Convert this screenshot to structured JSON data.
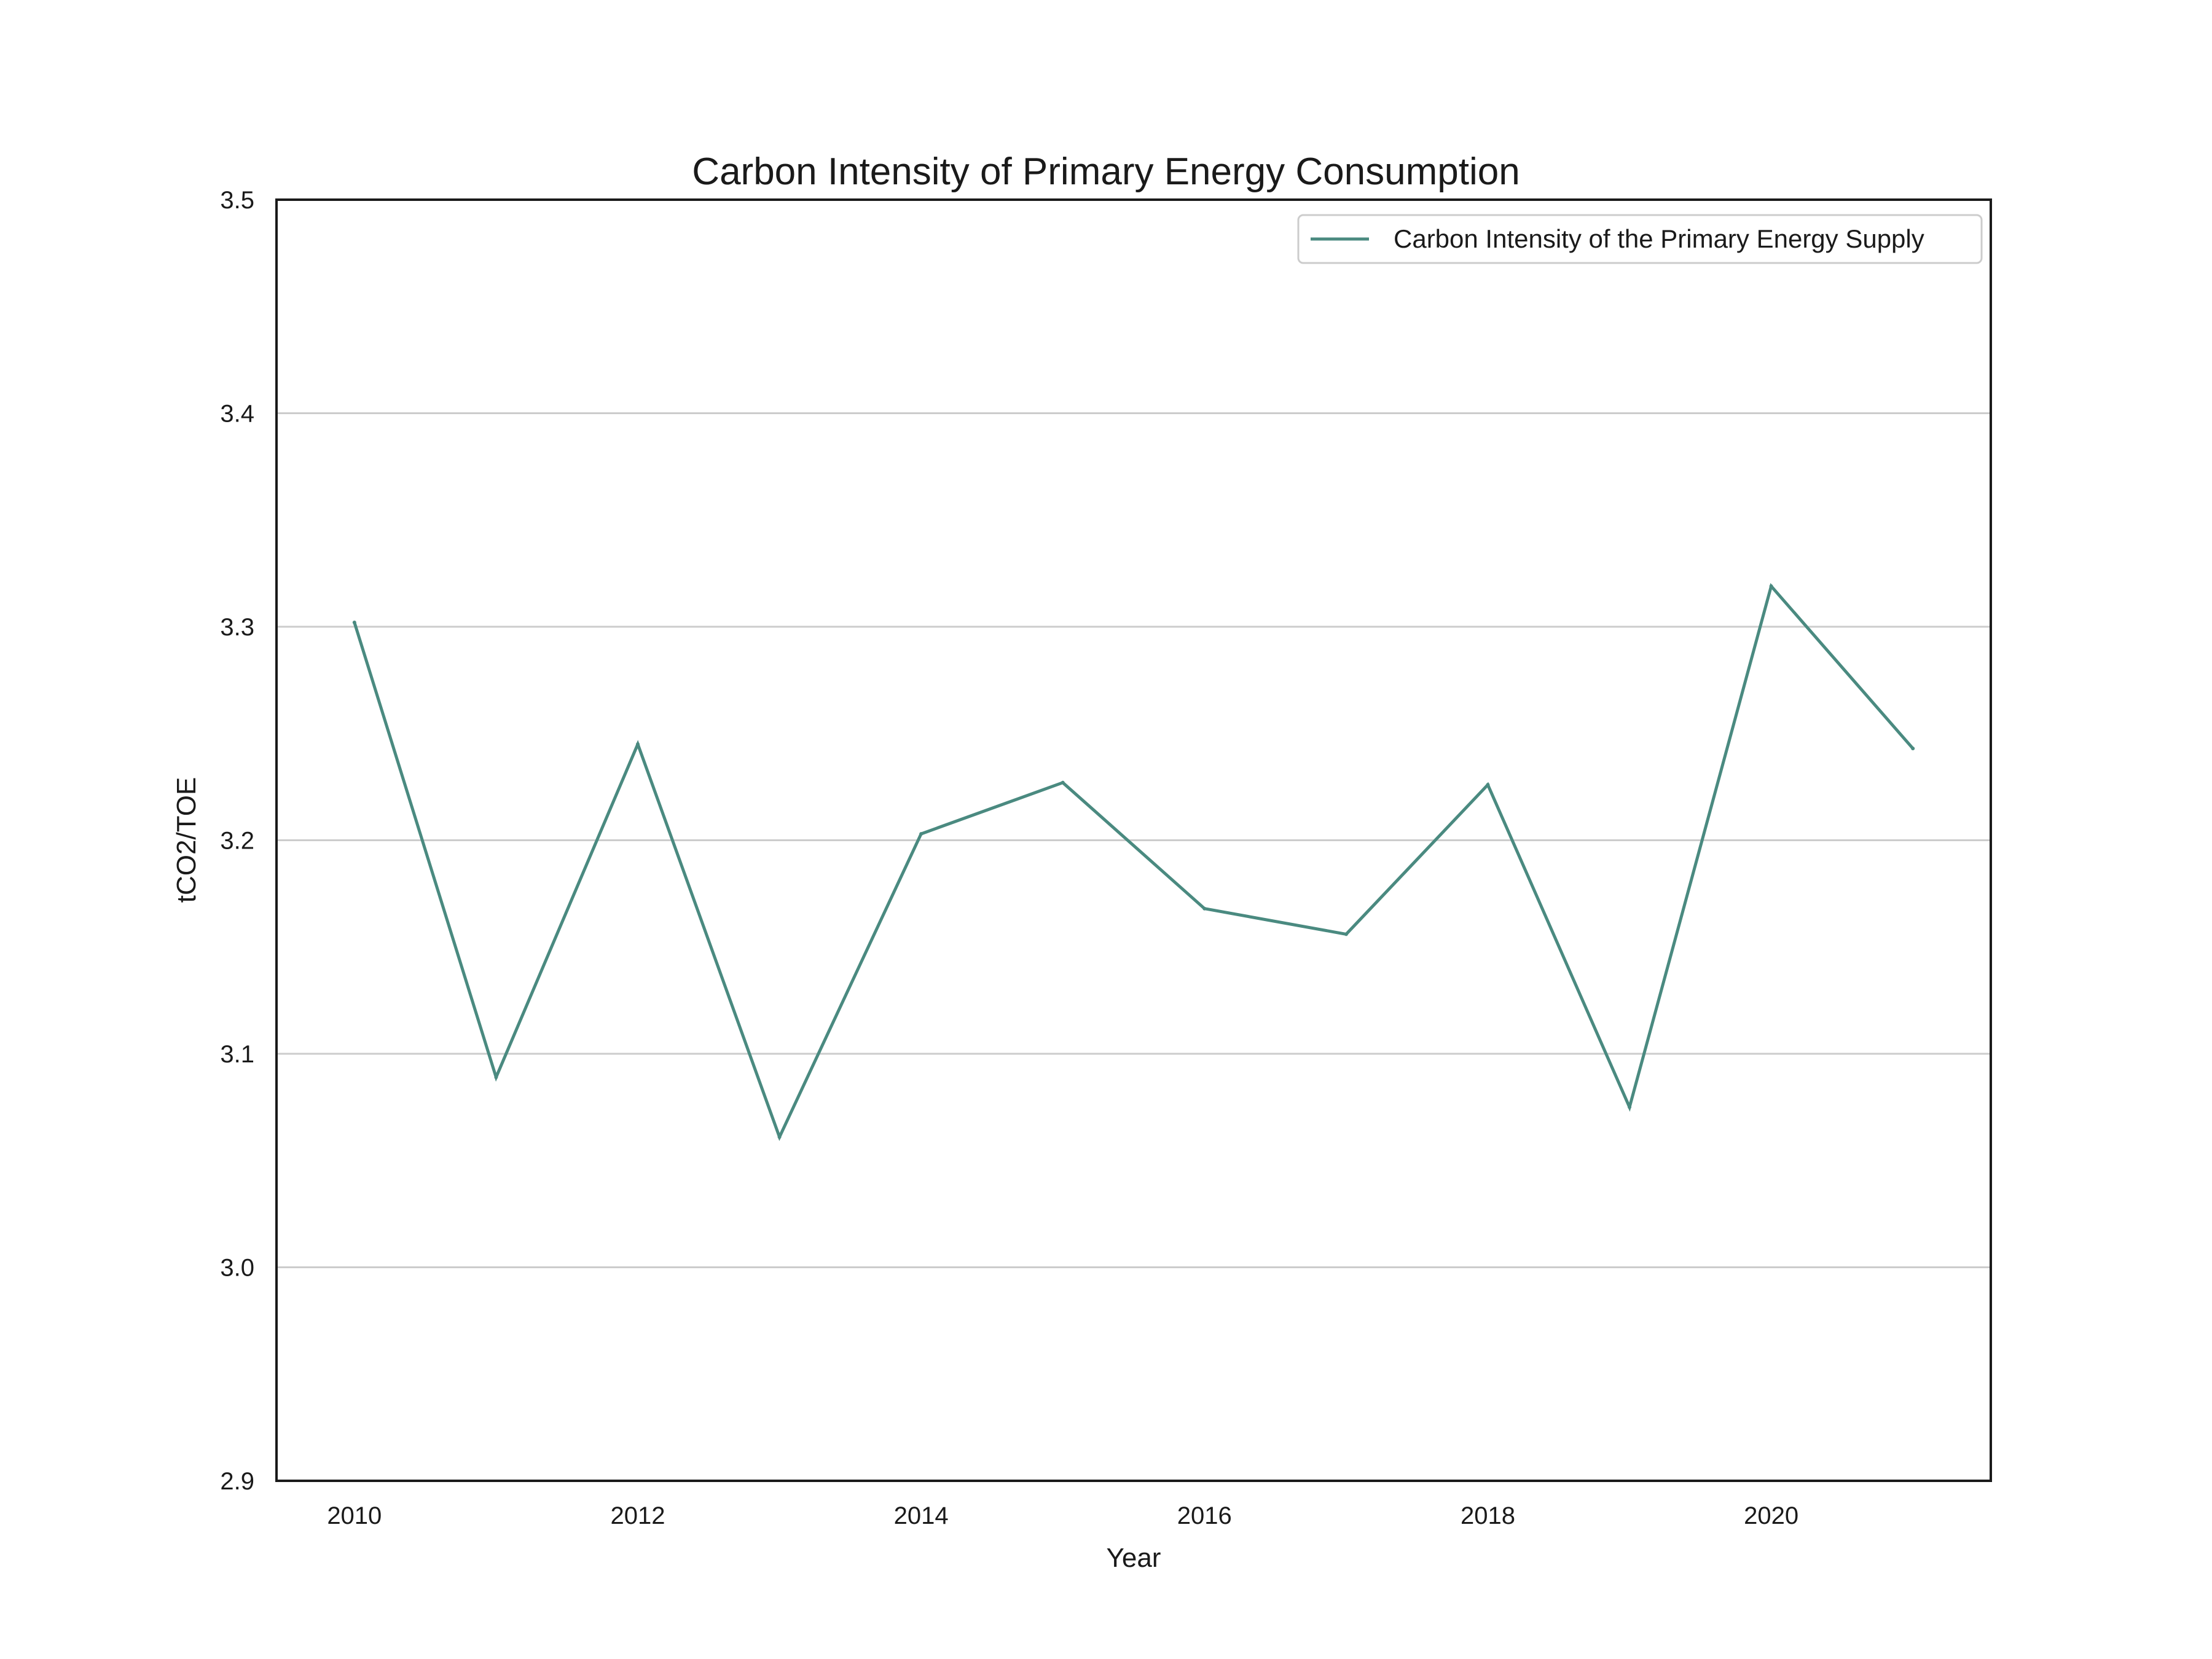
{
  "chart_data": {
    "type": "line",
    "title": "Carbon Intensity of Primary Energy Consumption",
    "xlabel": "Year",
    "ylabel": "tCO2/TOE",
    "x": [
      2010,
      2011,
      2012,
      2013,
      2014,
      2015,
      2016,
      2017,
      2018,
      2019,
      2020,
      2021
    ],
    "series": [
      {
        "name": "Carbon Intensity of the Primary Energy Supply",
        "color": "#4a8a80",
        "values": [
          3.302,
          3.089,
          3.245,
          3.061,
          3.203,
          3.227,
          3.168,
          3.156,
          3.226,
          3.075,
          3.319,
          3.243
        ]
      }
    ],
    "xticks": [
      2010,
      2012,
      2014,
      2016,
      2018,
      2020
    ],
    "xtick_labels": [
      "2010",
      "2012",
      "2014",
      "2016",
      "2018",
      "2020"
    ],
    "yticks": [
      2.9,
      3.0,
      3.1,
      3.2,
      3.3,
      3.4,
      3.5
    ],
    "ytick_labels": [
      "2.9",
      "3.0",
      "3.1",
      "3.2",
      "3.3",
      "3.4",
      "3.5"
    ],
    "xlim": [
      2009.45,
      2021.55
    ],
    "ylim": [
      2.9,
      3.5
    ],
    "grid": "horizontal",
    "legend_position": "top-right",
    "colors": {
      "grid": "#cccccc",
      "frame": "#1a1a1a",
      "legend_border": "#cccccc"
    }
  }
}
